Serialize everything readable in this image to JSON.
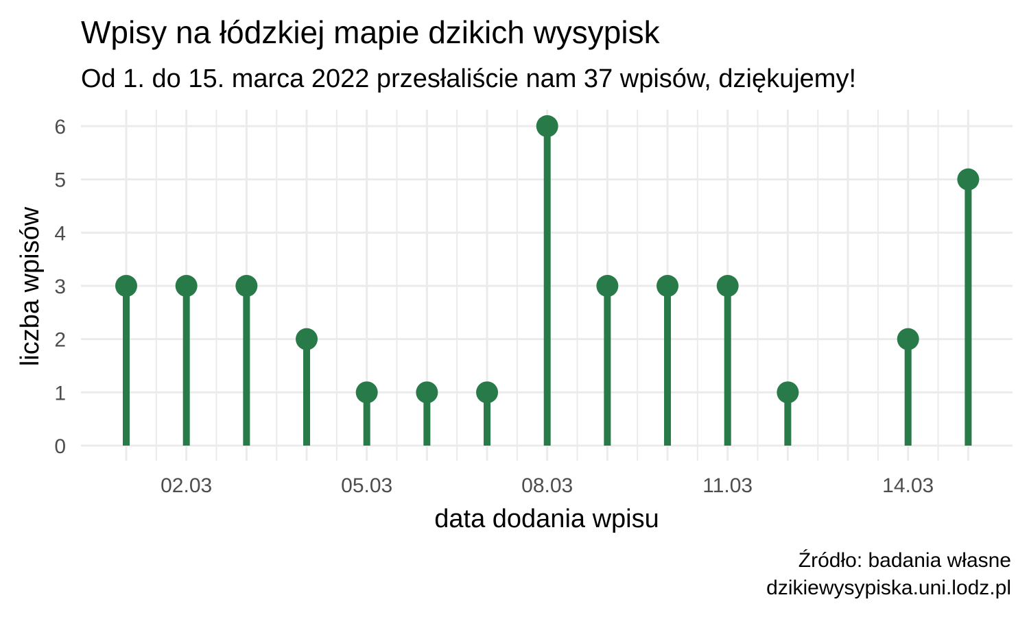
{
  "chart_data": {
    "type": "lollipop",
    "title": "Wpisy na łódzkiej mapie dzikich wysypisk",
    "subtitle": "Od 1. do 15. marca 2022 przesłaliście nam 37 wpisów, dziękujemy!",
    "xlabel": "data dodania wpisu",
    "ylabel": "liczba wpisów",
    "caption": [
      "Źródło: badania własne",
      "dzikiewysypiska.uni.lodz.pl"
    ],
    "x": [
      "01.03",
      "02.03",
      "03.03",
      "04.03",
      "05.03",
      "06.03",
      "07.03",
      "08.03",
      "09.03",
      "10.03",
      "11.03",
      "12.03",
      "13.03",
      "14.03",
      "15.03"
    ],
    "values": [
      3,
      3,
      3,
      2,
      1,
      1,
      1,
      6,
      3,
      3,
      3,
      1,
      0,
      2,
      5
    ],
    "x_tick_labels": [
      "02.03",
      "05.03",
      "08.03",
      "11.03",
      "14.03"
    ],
    "y_ticks": [
      0,
      1,
      2,
      3,
      4,
      5,
      6
    ],
    "ylim": [
      0,
      6
    ],
    "grid": true,
    "color": "#287a48",
    "grid_color": "#ebebeb"
  }
}
